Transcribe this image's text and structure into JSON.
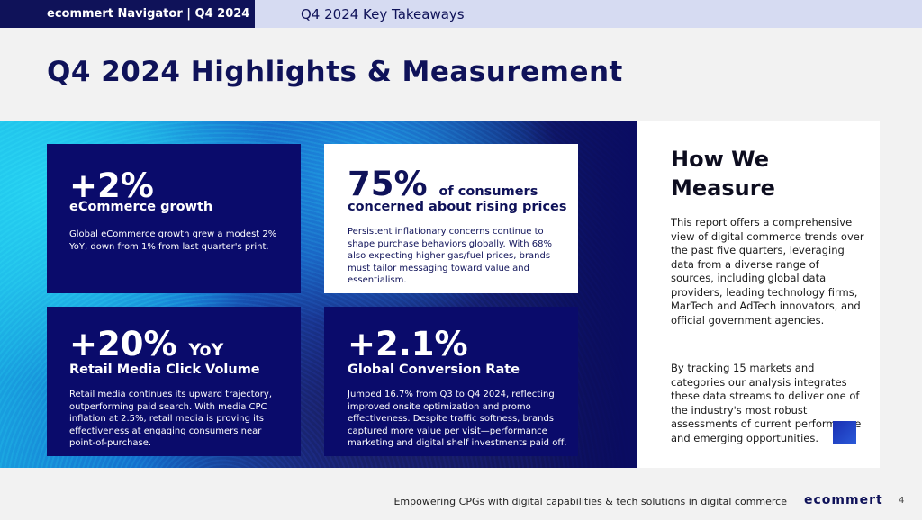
{
  "header": {
    "nav_label": "ecommert Navigator  | Q4 2024",
    "tab_label": "Q4 2024 Key Takeaways"
  },
  "page_title": "Q4 2024 Highlights & Measurement",
  "cards": [
    {
      "stat": "+2%",
      "stat_suffix": "",
      "subtitle": "eCommerce growth",
      "body": "Global eCommerce growth grew a modest 2% YoY, down from 1% from last quarter's print."
    },
    {
      "stat": "75%",
      "stat_suffix": "of consumers",
      "subtitle": "concerned about rising prices",
      "body": "Persistent inflationary concerns continue to shape purchase behaviors globally. With 68% also expecting higher gas/fuel prices, brands must tailor messaging toward value and essentialism."
    },
    {
      "stat": "+20%",
      "stat_suffix": "YoY",
      "subtitle": "Retail Media Click Volume",
      "body": "Retail media continues its upward trajectory, outperforming paid search. With media CPC inflation at 2.5%, retail media is proving its effectiveness at engaging consumers near point-of-purchase."
    },
    {
      "stat": "+2.1%",
      "stat_suffix": "",
      "subtitle": "Global Conversion Rate",
      "body": "Jumped 16.7% from Q3 to Q4 2024, reflecting improved onsite optimization and promo effectiveness. Despite traffic softness, brands captured more value per visit—performance marketing and digital shelf investments paid off."
    }
  ],
  "measure": {
    "title": "How We Measure",
    "para1": "This report offers a comprehensive view of digital commerce trends over the past five quarters, leveraging data from a diverse range of sources, including global data providers, leading technology firms, MarTech and AdTech innovators, and official government agencies.",
    "para2": "By tracking 15 markets and categories our analysis integrates these data streams to deliver one of the industry's most robust assessments of current performance and emerging opportunities."
  },
  "footer": {
    "tagline": "Empowering CPGs with digital capabilities & tech solutions in digital commerce",
    "logo": "ecommert",
    "page_number": "4"
  },
  "colors": {
    "navy": "#0f1259",
    "card_dark": "#0a0b6b",
    "accent_light": "#d6dbf2"
  }
}
